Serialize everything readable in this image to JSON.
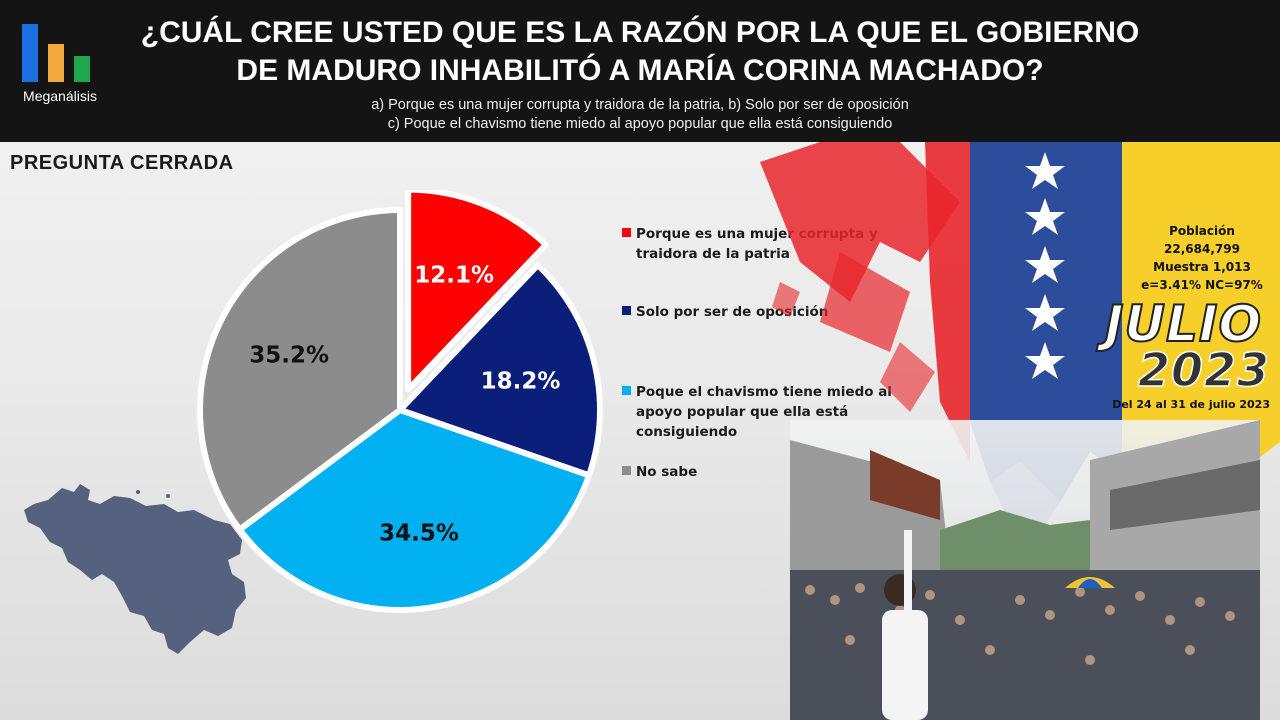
{
  "header": {
    "logo_text": "Meganálisis",
    "title_line1": "¿CUÁL CREE USTED QUE ES LA RAZÓN POR LA QUE EL GOBIERNO",
    "title_line2": "DE MADURO INHABILITÓ A MARÍA CORINA MACHADO?",
    "options_line1": "a) Porque es una mujer corrupta y traidora de la patria,  b) Solo por ser de oposición",
    "options_line2": "c) Poque el chavismo tiene miedo al apoyo popular que ella está consiguiendo"
  },
  "section_label": "PREGUNTA  CERRADA",
  "chart_data": {
    "type": "pie",
    "title": "¿CUÁL CREE USTED QUE ES LA RAZÓN POR LA QUE EL GOBIERNO DE MADURO INHABILITÓ A MARÍA CORINA MACHADO?",
    "legend_position": "right",
    "slices": [
      {
        "label": "Porque es una mujer corrupta y traidora de la patria",
        "value": 12.1,
        "display": "12.1%",
        "color": "#ff0000",
        "text_color": "#ffffff",
        "exploded": true
      },
      {
        "label": "Solo por ser de oposición",
        "value": 18.2,
        "display": "18.2%",
        "color": "#0b1f7a",
        "text_color": "#ffffff",
        "exploded": false
      },
      {
        "label": "Poque el chavismo tiene miedo al apoyo popular que ella está consiguiendo",
        "value": 34.5,
        "display": "34.5%",
        "color": "#00b0f0",
        "text_color": "#111111",
        "exploded": false
      },
      {
        "label": "No sabe",
        "value": 35.2,
        "display": "35.2%",
        "color": "#8c8c8c",
        "text_color": "#111111",
        "exploded": false
      }
    ]
  },
  "legend": {
    "items": [
      {
        "line1": "Porque es una mujer corrupta y",
        "line2": "traidora de la patria",
        "line3": ""
      },
      {
        "line1": "Solo por ser de oposición",
        "line2": "",
        "line3": ""
      },
      {
        "line1": "Poque el chavismo tiene miedo al",
        "line2": "apoyo popular que ella está",
        "line3": "consiguiendo"
      },
      {
        "line1": "No sabe",
        "line2": "",
        "line3": ""
      }
    ]
  },
  "study": {
    "line1": "Población",
    "line2": "22,684,799",
    "line3": "Muestra 1,013",
    "line4": "e=3.41%  NC=97%"
  },
  "period": {
    "month": "JULIO",
    "year": "2023",
    "dates": "Del 24 al 31 de julio 2023"
  }
}
